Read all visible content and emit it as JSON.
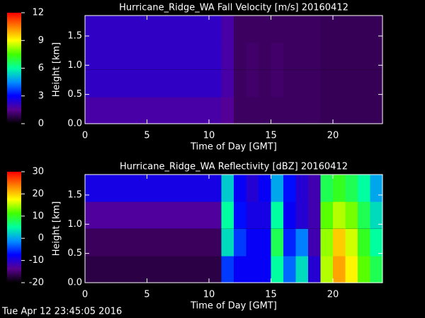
{
  "timestamp": "Tue Apr 12 23:45:05 2016",
  "chart_data": [
    {
      "type": "heatmap",
      "title": "Hurricane_Ridge_WA Fall Velocity [m/s] 20160412",
      "x_label": "Time of Day [GMT]",
      "y_label": "Height [km]",
      "xlim": [
        0,
        24
      ],
      "xticks": [
        0,
        5,
        10,
        15,
        20
      ],
      "ylim": [
        0,
        1.85
      ],
      "yticks": [
        {
          "value": 0,
          "label": "0.0"
        },
        {
          "value": 0.5,
          "label": "0.5"
        },
        {
          "value": 1,
          "label": "1.0"
        },
        {
          "value": 1.5,
          "label": "1.5"
        }
      ],
      "x": [
        0.5,
        1.5,
        2.5,
        3.5,
        4.5,
        5.5,
        6.5,
        7.5,
        8.5,
        9.5,
        10.5,
        11.5,
        12.5,
        13.5,
        14.5,
        15.5,
        16.5,
        17.5,
        18.5,
        19.5,
        20.5,
        21.5,
        22.5,
        23.5
      ],
      "y": [
        0.23,
        0.69,
        1.16,
        1.62
      ],
      "values": [
        [
          1.8,
          1.8,
          1.8,
          1.8,
          1.8,
          1.8,
          1.8,
          1.8,
          1.8,
          1.8,
          1.8,
          1.6,
          1.0,
          1.0,
          1.0,
          1.0,
          1.0,
          1.0,
          1.0,
          0.9,
          0.9,
          0.9,
          0.9,
          0.9
        ],
        [
          2.2,
          2.2,
          2.2,
          2.2,
          2.2,
          2.2,
          2.2,
          2.2,
          2.2,
          2.2,
          2.2,
          1.8,
          1.0,
          1.1,
          1.0,
          1.1,
          1.0,
          1.0,
          1.0,
          0.9,
          0.9,
          0.9,
          0.9,
          0.9
        ],
        [
          2.2,
          2.2,
          2.2,
          2.2,
          2.2,
          2.2,
          2.2,
          2.2,
          2.2,
          2.2,
          2.2,
          1.8,
          1.0,
          1.1,
          1.0,
          1.1,
          1.0,
          1.0,
          1.0,
          0.9,
          0.9,
          0.9,
          0.9,
          0.9
        ],
        [
          2.2,
          2.2,
          2.2,
          2.2,
          2.2,
          2.2,
          2.2,
          2.2,
          2.2,
          2.2,
          2.2,
          1.8,
          1.0,
          1.0,
          1.0,
          1.0,
          1.0,
          1.0,
          1.0,
          0.9,
          0.9,
          0.9,
          0.9,
          0.9
        ]
      ],
      "cbar_lim": [
        0,
        12
      ],
      "cbar_ticks": [
        0,
        3,
        6,
        9,
        12
      ],
      "colormap": [
        "#000000",
        "#5a0090",
        "#0000ff",
        "#0090ff",
        "#00ffa0",
        "#40ff00",
        "#ffff00",
        "#ff8000",
        "#ff0000"
      ]
    },
    {
      "type": "heatmap",
      "title": "Hurricane_Ridge_WA Reflectivity [dBZ] 20160412",
      "x_label": "Time of Day [GMT]",
      "y_label": "Height [km]",
      "xlim": [
        0,
        24
      ],
      "xticks": [
        0,
        5,
        10,
        15,
        20
      ],
      "ylim": [
        0,
        1.85
      ],
      "yticks": [
        {
          "value": 0,
          "label": "0.0"
        },
        {
          "value": 0.5,
          "label": "0.5"
        },
        {
          "value": 1,
          "label": "1.0"
        },
        {
          "value": 1.5,
          "label": "1.5"
        }
      ],
      "x": [
        0.5,
        1.5,
        2.5,
        3.5,
        4.5,
        5.5,
        6.5,
        7.5,
        8.5,
        9.5,
        10.5,
        11.5,
        12.5,
        13.5,
        14.5,
        15.5,
        16.5,
        17.5,
        18.5,
        19.5,
        20.5,
        21.5,
        22.5,
        23.5
      ],
      "y": [
        0.23,
        0.69,
        1.16,
        1.62
      ],
      "values": [
        [
          -17,
          -17,
          -17,
          -17,
          -17,
          -17,
          -17,
          -17,
          -17,
          -17,
          -17,
          -5,
          -8,
          -8,
          -8,
          5,
          -3,
          3,
          -10,
          15,
          22,
          18,
          12,
          8
        ],
        [
          -16,
          -16,
          -16,
          -16,
          -16,
          -16,
          -16,
          -16,
          -16,
          -16,
          -16,
          3,
          -5,
          -8,
          -8,
          8,
          -6,
          -2,
          -12,
          14,
          20,
          16,
          10,
          5
        ],
        [
          -13,
          -13,
          -13,
          -13,
          -13,
          -13,
          -13,
          -13,
          -13,
          -13,
          -13,
          5,
          -7,
          -9,
          -9,
          5,
          -8,
          -10,
          -12,
          12,
          15,
          13,
          8,
          3
        ],
        [
          -9,
          -9,
          -9,
          -9,
          -9,
          -9,
          -9,
          -9,
          -9,
          -9,
          -9,
          2,
          -8,
          -10,
          -8,
          0,
          -7,
          -10,
          -12,
          8,
          10,
          8,
          5,
          0
        ]
      ],
      "cbar_lim": [
        -20,
        30
      ],
      "cbar_ticks": [
        -20,
        -10,
        0,
        10,
        20,
        30
      ],
      "colormap": [
        "#000000",
        "#5a0090",
        "#0000ff",
        "#0090ff",
        "#00ffa0",
        "#40ff00",
        "#ffff00",
        "#ff8000",
        "#ff0000"
      ]
    }
  ]
}
